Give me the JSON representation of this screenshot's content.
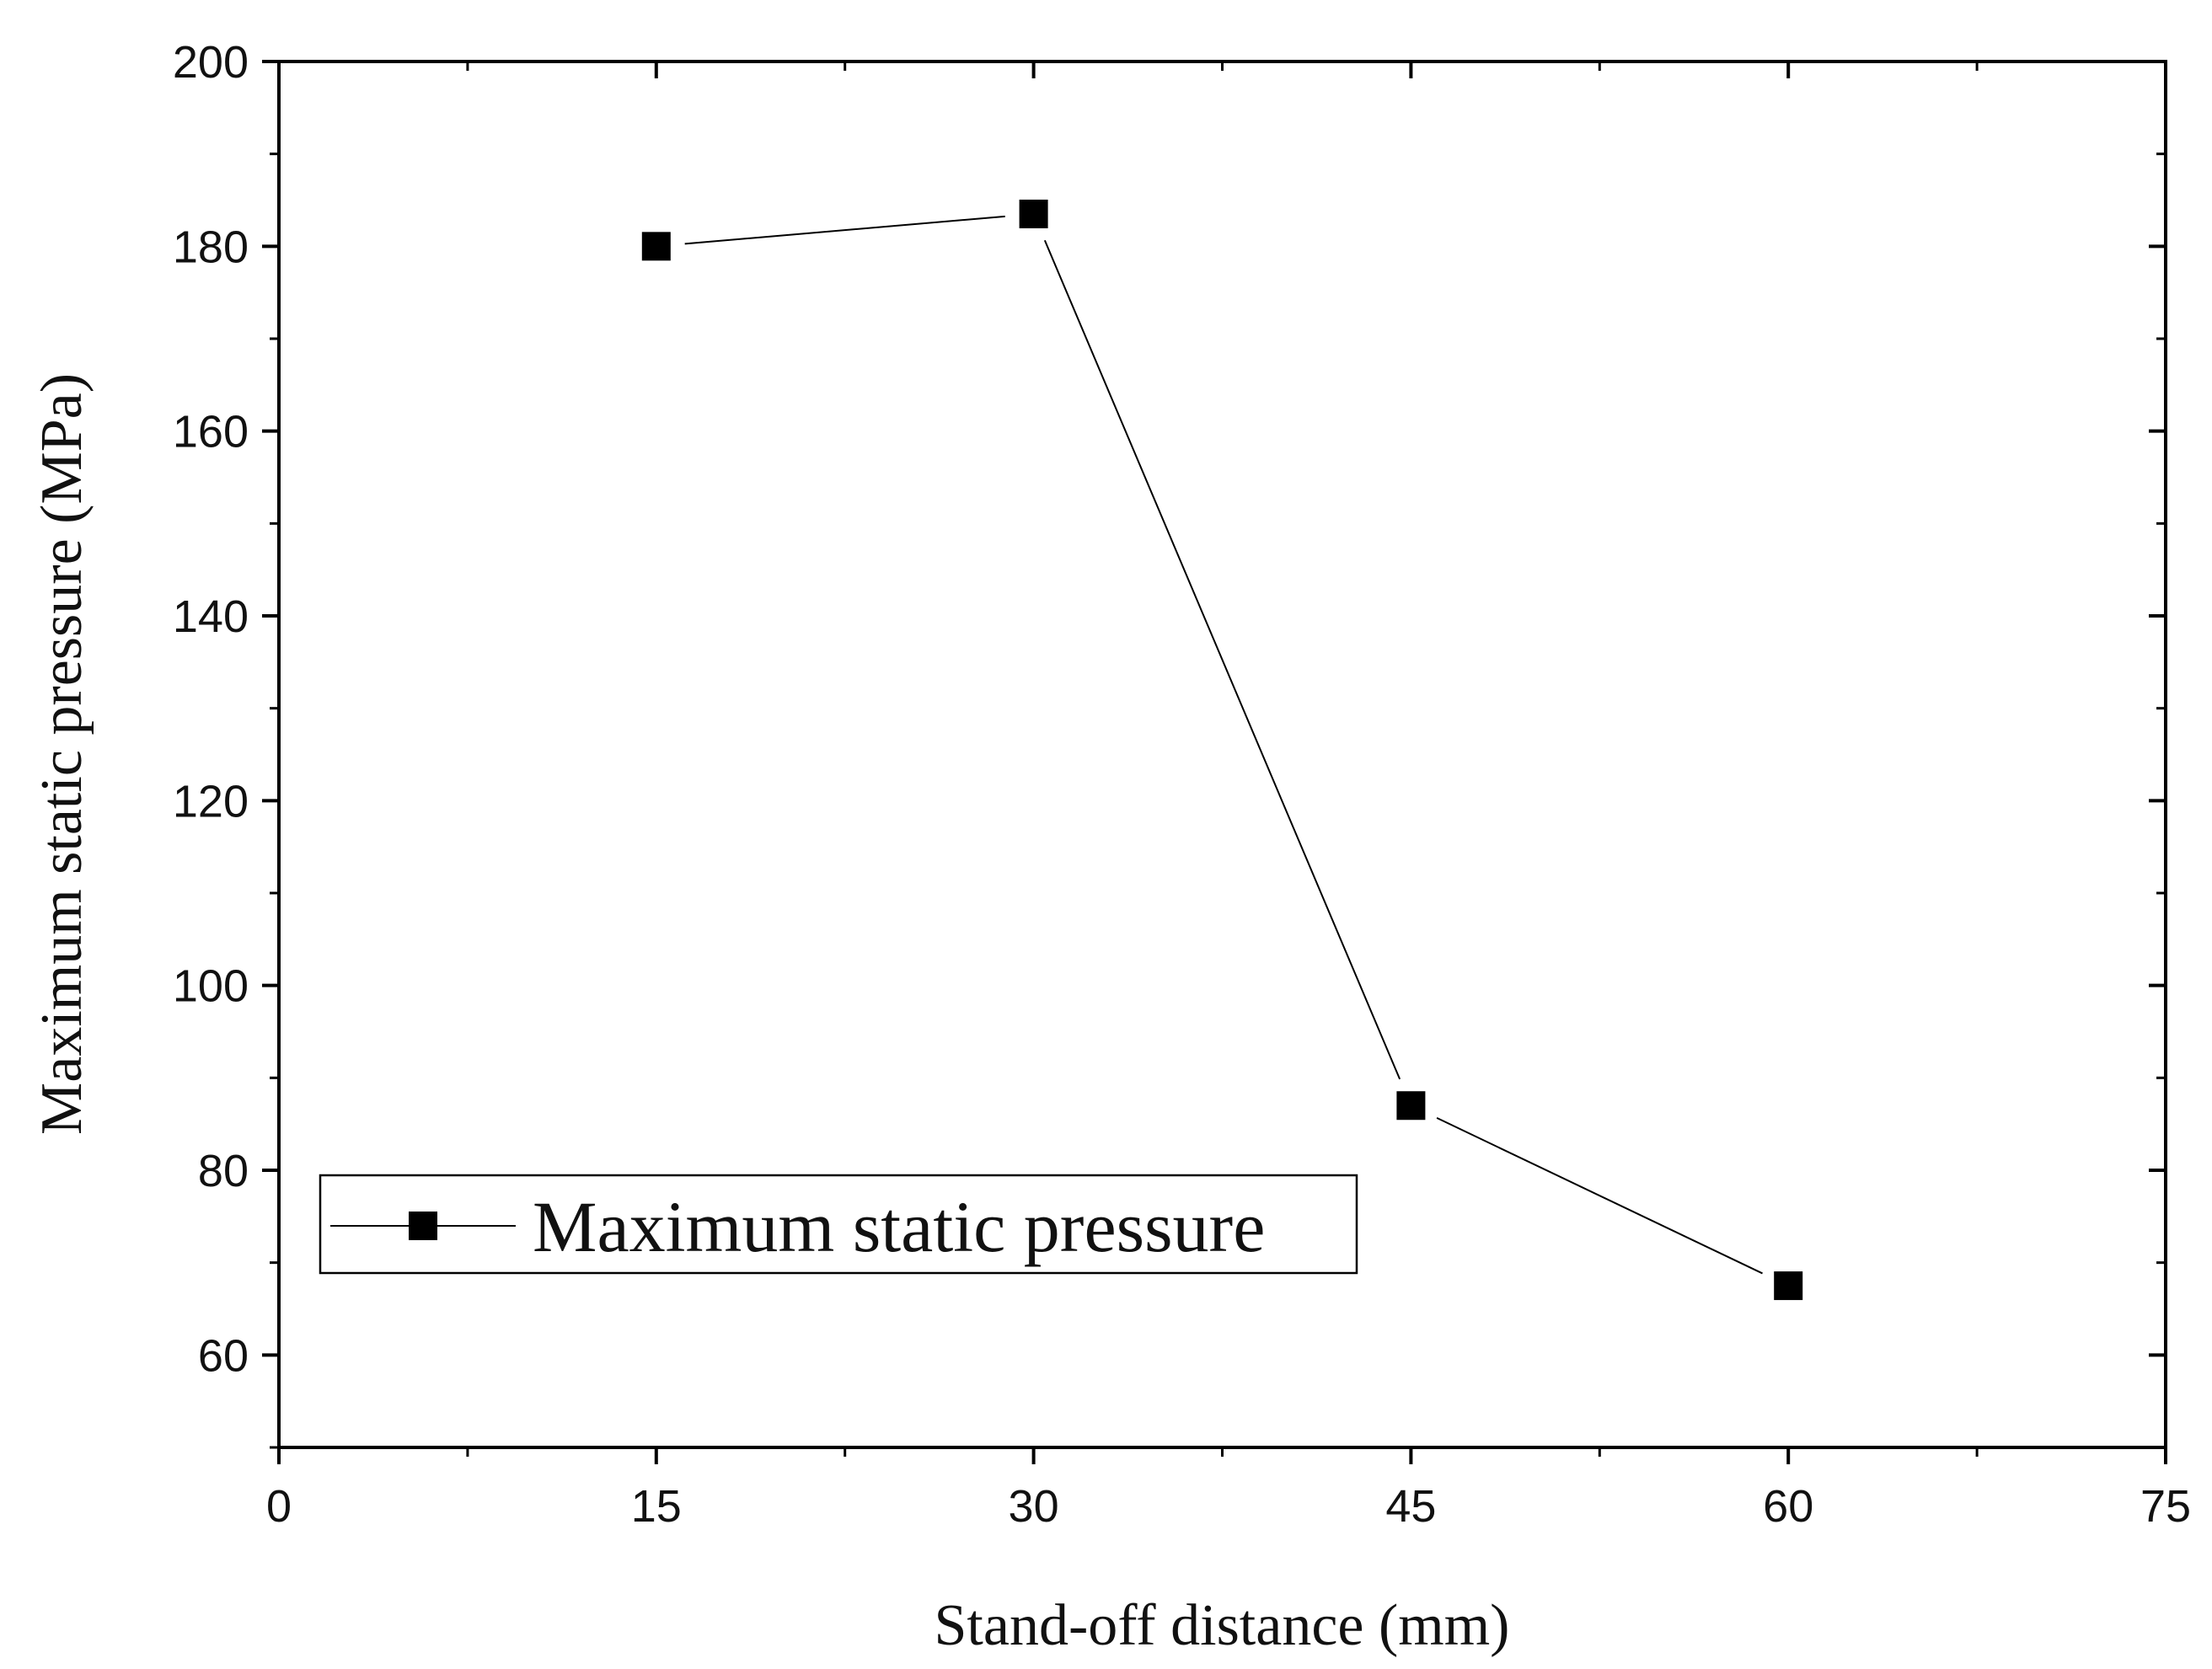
{
  "chart_data": {
    "type": "line",
    "title": "",
    "xlabel": "Stand-off distance (mm)",
    "ylabel": "Maximum static pressure (MPa)",
    "xlim": [
      0,
      75
    ],
    "ylim": [
      50,
      200
    ],
    "x_ticks": [
      0,
      15,
      30,
      45,
      60,
      75
    ],
    "y_ticks": [
      60,
      80,
      100,
      120,
      140,
      160,
      180,
      200
    ],
    "x_minor_step": 7.5,
    "y_minor_step": 10,
    "grid": false,
    "legend_position": "lower-left",
    "series": [
      {
        "name": "Maximum static pressure",
        "marker": "square",
        "color": "#000000",
        "x": [
          15,
          30,
          45,
          60
        ],
        "y": [
          180,
          183.5,
          87,
          67.5
        ]
      }
    ]
  }
}
